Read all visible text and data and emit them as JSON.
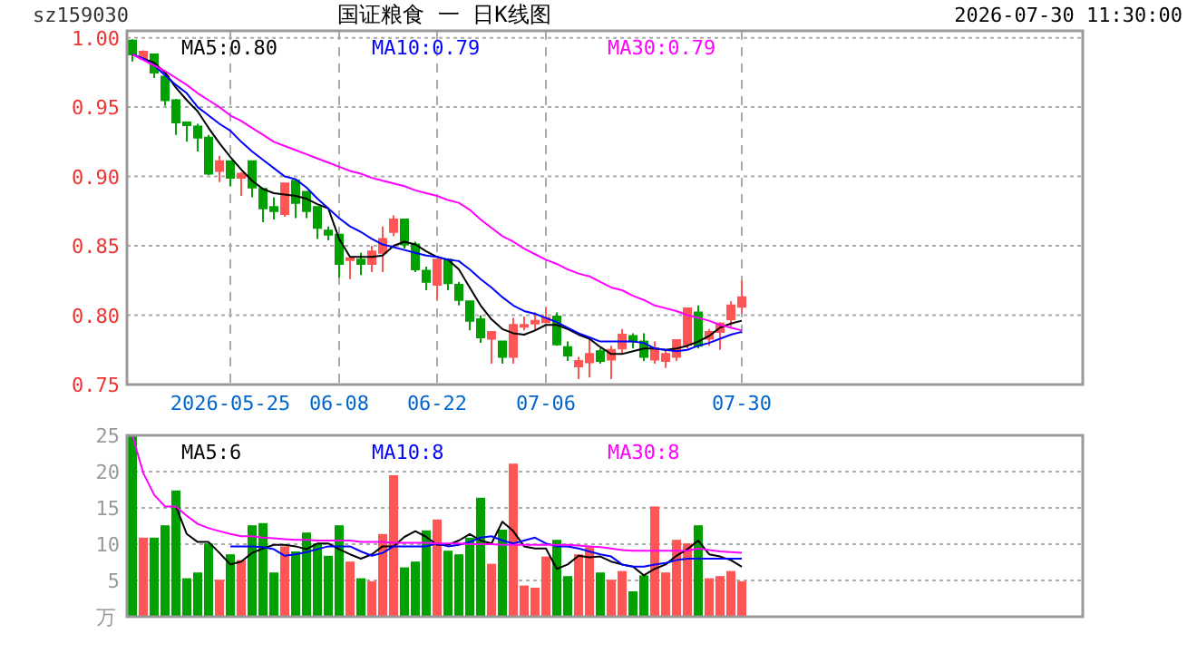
{
  "chart_data": [
    {
      "type": "candlestick",
      "title": "国证粮食 一 日K线图",
      "annotations": [
        "sz159030",
        "2026-07-30 11:30:00"
      ],
      "categories": [
        null,
        null,
        null,
        null,
        null,
        null,
        null,
        null,
        null,
        "2026-05-25",
        null,
        null,
        null,
        null,
        null,
        null,
        null,
        null,
        null,
        "06-08",
        null,
        null,
        null,
        null,
        null,
        null,
        null,
        null,
        "06-22",
        null,
        null,
        null,
        null,
        null,
        null,
        null,
        null,
        null,
        "07-06",
        null,
        null,
        null,
        null,
        null,
        null,
        null,
        null,
        null,
        null,
        null,
        null,
        null,
        null,
        null,
        null,
        null,
        "07-30"
      ],
      "ohlc": [
        [
          0.998,
          0.999,
          0.983,
          0.988
        ],
        [
          0.985,
          0.991,
          0.984,
          0.99
        ],
        [
          0.988,
          0.988,
          0.971,
          0.975
        ],
        [
          0.972,
          0.973,
          0.951,
          0.955
        ],
        [
          0.955,
          0.956,
          0.93,
          0.939
        ],
        [
          0.939,
          0.939,
          0.925,
          0.937
        ],
        [
          0.936,
          0.938,
          0.918,
          0.928
        ],
        [
          0.928,
          0.93,
          0.901,
          0.902
        ],
        [
          0.904,
          0.915,
          0.896,
          0.911
        ],
        [
          0.911,
          0.911,
          0.893,
          0.899
        ],
        [
          0.899,
          0.903,
          0.886,
          0.902
        ],
        [
          0.911,
          0.911,
          0.885,
          0.892
        ],
        [
          0.891,
          0.891,
          0.867,
          0.877
        ],
        [
          0.878,
          0.885,
          0.869,
          0.875
        ],
        [
          0.873,
          0.895,
          0.871,
          0.895
        ],
        [
          0.897,
          0.898,
          0.87,
          0.881
        ],
        [
          0.889,
          0.889,
          0.87,
          0.875
        ],
        [
          0.878,
          0.878,
          0.855,
          0.863
        ],
        [
          0.861,
          0.864,
          0.854,
          0.858
        ],
        [
          0.858,
          0.858,
          0.827,
          0.837
        ],
        [
          0.84,
          0.841,
          0.826,
          0.841
        ],
        [
          0.84,
          0.845,
          0.829,
          0.837
        ],
        [
          0.837,
          0.85,
          0.831,
          0.846
        ],
        [
          0.845,
          0.864,
          0.831,
          0.855
        ],
        [
          0.86,
          0.872,
          0.857,
          0.869
        ],
        [
          0.869,
          0.869,
          0.848,
          0.851
        ],
        [
          0.851,
          0.853,
          0.831,
          0.833
        ],
        [
          0.832,
          0.835,
          0.818,
          0.824
        ],
        [
          0.822,
          0.84,
          0.811,
          0.84
        ],
        [
          0.84,
          0.841,
          0.818,
          0.823
        ],
        [
          0.822,
          0.824,
          0.807,
          0.811
        ],
        [
          0.81,
          0.81,
          0.789,
          0.796
        ],
        [
          0.797,
          0.8,
          0.78,
          0.784
        ],
        [
          0.783,
          0.788,
          0.765,
          0.788
        ],
        [
          0.781,
          0.781,
          0.765,
          0.77
        ],
        [
          0.77,
          0.798,
          0.765,
          0.793
        ],
        [
          0.792,
          0.799,
          0.789,
          0.793
        ],
        [
          0.794,
          0.802,
          0.789,
          0.796
        ],
        [
          0.795,
          0.806,
          0.794,
          0.798
        ],
        [
          0.799,
          0.802,
          0.778,
          0.779
        ],
        [
          0.777,
          0.781,
          0.767,
          0.771
        ],
        [
          0.763,
          0.77,
          0.754,
          0.767
        ],
        [
          0.766,
          0.783,
          0.755,
          0.772
        ],
        [
          0.774,
          0.776,
          0.765,
          0.767
        ],
        [
          0.768,
          0.778,
          0.754,
          0.775
        ],
        [
          0.776,
          0.79,
          0.772,
          0.786
        ],
        [
          0.785,
          0.787,
          0.776,
          0.781
        ],
        [
          0.781,
          0.787,
          0.767,
          0.77
        ],
        [
          0.768,
          0.781,
          0.765,
          0.776
        ],
        [
          0.767,
          0.775,
          0.762,
          0.772
        ],
        [
          0.77,
          0.782,
          0.767,
          0.782
        ],
        [
          0.779,
          0.805,
          0.776,
          0.805
        ],
        [
          0.802,
          0.807,
          0.776,
          0.778
        ],
        [
          0.783,
          0.79,
          0.778,
          0.788
        ],
        [
          0.788,
          0.795,
          0.775,
          0.794
        ],
        [
          0.797,
          0.81,
          0.792,
          0.807
        ],
        [
          0.806,
          0.825,
          0.801,
          0.813
        ]
      ],
      "colors": [
        "#00a000",
        "#ff5555",
        "#00a000",
        "#00a000",
        "#00a000",
        "#00a000",
        "#00a000",
        "#00a000",
        "#ff5555",
        "#00a000",
        "#ff5555",
        "#00a000",
        "#00a000",
        "#00a000",
        "#ff5555",
        "#00a000",
        "#00a000",
        "#00a000",
        "#00a000",
        "#00a000",
        "#ff5555",
        "#00a000",
        "#ff5555",
        "#ff5555",
        "#ff5555",
        "#00a000",
        "#00a000",
        "#00a000",
        "#ff5555",
        "#00a000",
        "#00a000",
        "#00a000",
        "#00a000",
        "#ff5555",
        "#00a000",
        "#ff5555",
        "#ff5555",
        "#ff5555",
        "#ff5555",
        "#00a000",
        "#00a000",
        "#ff5555",
        "#ff5555",
        "#00a000",
        "#ff5555",
        "#ff5555",
        "#00a000",
        "#00a000",
        "#ff5555",
        "#ff5555",
        "#ff5555",
        "#ff5555",
        "#00a000",
        "#ff5555",
        "#ff5555",
        "#ff5555",
        "#ff5555"
      ],
      "ylim": [
        0.75,
        1.005
      ],
      "yticks": [
        0.75,
        {
          "value": 0.8,
          "label": "0.80"
        },
        0.85,
        {
          "value": 0.9,
          "label": "0.90"
        },
        0.95,
        {
          "value": 1.0,
          "label": "1.00"
        }
      ],
      "grid": true,
      "legend": "top",
      "series": [
        {
          "name": "MA5:0.80",
          "type": "line",
          "color": "#000000",
          "values": [
            0.988,
            0.985,
            0.982,
            0.975,
            0.964,
            0.955,
            0.947,
            0.935,
            0.924,
            0.914,
            0.905,
            0.897,
            0.891,
            0.888,
            0.887,
            0.886,
            0.884,
            0.88,
            0.877,
            0.855,
            0.842,
            0.842,
            0.842,
            0.843,
            0.85,
            0.853,
            0.851,
            0.846,
            0.842,
            0.84,
            0.833,
            0.82,
            0.807,
            0.797,
            0.79,
            0.787,
            0.786,
            0.789,
            0.793,
            0.793,
            0.79,
            0.786,
            0.783,
            0.777,
            0.772,
            0.772,
            0.774,
            0.776,
            0.776,
            0.775,
            0.776,
            0.778,
            0.781,
            0.785,
            0.791,
            0.794,
            0.796
          ]
        },
        {
          "name": "MA10:0.79",
          "type": "line",
          "color": "#0000ff",
          "values": [
            0.988,
            0.985,
            0.98,
            0.973,
            0.966,
            0.96,
            0.95,
            0.944,
            0.938,
            0.933,
            0.925,
            0.918,
            0.912,
            0.906,
            0.9,
            0.898,
            0.892,
            0.884,
            0.877,
            0.87,
            0.864,
            0.86,
            0.855,
            0.851,
            0.849,
            0.847,
            0.845,
            0.843,
            0.842,
            0.84,
            0.839,
            0.833,
            0.826,
            0.82,
            0.813,
            0.807,
            0.803,
            0.801,
            0.798,
            0.795,
            0.791,
            0.787,
            0.784,
            0.781,
            0.781,
            0.781,
            0.781,
            0.78,
            0.776,
            0.775,
            0.774,
            0.775,
            0.778,
            0.78,
            0.783,
            0.786,
            0.788
          ]
        },
        {
          "name": "MA30:0.79",
          "type": "line",
          "color": "#ff00ff",
          "values": [
            0.988,
            0.984,
            0.98,
            0.976,
            0.971,
            0.966,
            0.96,
            0.955,
            0.95,
            0.944,
            0.94,
            0.935,
            0.93,
            0.925,
            0.922,
            0.919,
            0.916,
            0.913,
            0.91,
            0.907,
            0.904,
            0.902,
            0.899,
            0.897,
            0.895,
            0.893,
            0.89,
            0.888,
            0.886,
            0.883,
            0.881,
            0.876,
            0.869,
            0.863,
            0.857,
            0.853,
            0.848,
            0.844,
            0.84,
            0.837,
            0.833,
            0.83,
            0.828,
            0.824,
            0.82,
            0.818,
            0.814,
            0.811,
            0.807,
            0.805,
            0.803,
            0.8,
            0.798,
            0.796,
            0.793,
            0.791,
            0.789
          ]
        }
      ]
    },
    {
      "type": "bar",
      "ylabel": "万",
      "tick_labels": "y",
      "categories": [
        null,
        null,
        null,
        null,
        null,
        null,
        null,
        null,
        null,
        null,
        null,
        null,
        null,
        null,
        null,
        null,
        null,
        null,
        null,
        null,
        null,
        null,
        null,
        null,
        null,
        null,
        null,
        null,
        null,
        null,
        null,
        null,
        null,
        null,
        null,
        null,
        null,
        null,
        null,
        null,
        null,
        null,
        null,
        null,
        null,
        null,
        null,
        null,
        null,
        null,
        null,
        null,
        null,
        null,
        null,
        null,
        null
      ],
      "ylim": [
        0,
        25
      ],
      "yticks": [
        5,
        10,
        15,
        20,
        25
      ],
      "grid": true,
      "legend": "top",
      "series": [
        {
          "type": "bar",
          "values": [
            25,
            10.9,
            10.9,
            12.6,
            17.4,
            5.3,
            6.1,
            10.1,
            5.1,
            8.6,
            7.8,
            12.6,
            12.9,
            6.1,
            9.7,
            9.0,
            11.6,
            10.1,
            8.4,
            12.6,
            7.6,
            5.3,
            4.9,
            11.4,
            19.5,
            6.8,
            7.6,
            11.9,
            13.4,
            9.1,
            8.6,
            10.9,
            16.4,
            7.3,
            12.0,
            21.1,
            4.3,
            4.0,
            8.3,
            10.6,
            5.6,
            8.6,
            9.6,
            6.1,
            5.1,
            6.3,
            3.5,
            5.7,
            15.2,
            6.1,
            10.6,
            10.1,
            12.6,
            5.3,
            5.6,
            6.3,
            4.9
          ],
          "colors": [
            "#00a000",
            "#ff5555",
            "#00a000",
            "#00a000",
            "#00a000",
            "#00a000",
            "#00a000",
            "#00a000",
            "#ff5555",
            "#00a000",
            "#ff5555",
            "#00a000",
            "#00a000",
            "#00a000",
            "#ff5555",
            "#00a000",
            "#00a000",
            "#00a000",
            "#00a000",
            "#00a000",
            "#ff5555",
            "#00a000",
            "#ff5555",
            "#ff5555",
            "#ff5555",
            "#00a000",
            "#00a000",
            "#00a000",
            "#ff5555",
            "#00a000",
            "#00a000",
            "#00a000",
            "#00a000",
            "#ff5555",
            "#00a000",
            "#ff5555",
            "#ff5555",
            "#ff5555",
            "#ff5555",
            "#00a000",
            "#00a000",
            "#ff5555",
            "#ff5555",
            "#00a000",
            "#ff5555",
            "#ff5555",
            "#00a000",
            "#00a000",
            "#ff5555",
            "#ff5555",
            "#ff5555",
            "#ff5555",
            "#00a000",
            "#ff5555",
            "#ff5555",
            "#ff5555",
            "#ff5555"
          ]
        },
        {
          "name": "MA5:6",
          "type": "line",
          "color": "#000000",
          "values": [
            null,
            null,
            null,
            null,
            15.2,
            11.4,
            10.3,
            10.3,
            8.8,
            7.2,
            7.6,
            8.8,
            9.4,
            9.9,
            9.9,
            9.7,
            9.3,
            10.1,
            10.1,
            9.3,
            8.6,
            8.0,
            8.6,
            9.7,
            9.7,
            11.0,
            11.8,
            11.0,
            9.9,
            9.9,
            10.5,
            11.4,
            10.5,
            10.1,
            13.1,
            11.8,
            9.7,
            9.4,
            9.4,
            6.6,
            7.2,
            8.4,
            8.2,
            8.3,
            7.6,
            7.2,
            6.9,
            5.7,
            6.6,
            7.2,
            8.4,
            9.3,
            10.5,
            8.6,
            8.3,
            7.8,
            6.9
          ]
        },
        {
          "name": "MA10:8",
          "type": "line",
          "color": "#0000ff",
          "values": [
            null,
            null,
            null,
            null,
            null,
            null,
            null,
            null,
            null,
            9.7,
            9.7,
            9.7,
            9.6,
            9.3,
            8.4,
            8.6,
            8.9,
            9.3,
            9.7,
            9.7,
            9.7,
            9.0,
            8.4,
            8.8,
            9.7,
            9.7,
            9.7,
            9.7,
            10.1,
            9.7,
            9.9,
            10.3,
            10.9,
            11.1,
            10.5,
            10.1,
            10.5,
            10.9,
            10.1,
            9.7,
            9.7,
            9.4,
            9.0,
            8.6,
            8.3,
            7.2,
            6.9,
            6.9,
            7.2,
            7.4,
            7.8,
            8.0,
            8.0,
            8.0,
            8.0,
            8.0,
            8.0
          ]
        },
        {
          "name": "MA30:8",
          "type": "line",
          "color": "#ff00ff",
          "values": [
            25,
            19.8,
            16.8,
            15.2,
            15.2,
            13.9,
            12.8,
            12.2,
            11.8,
            11.4,
            11.1,
            11.1,
            10.9,
            10.8,
            10.7,
            10.6,
            10.6,
            10.5,
            10.5,
            10.5,
            10.5,
            10.3,
            10.3,
            10.3,
            10.2,
            10.2,
            10.2,
            10.2,
            10.1,
            10.1,
            10.1,
            10.0,
            10.0,
            10.0,
            9.9,
            9.9,
            9.9,
            9.9,
            9.9,
            9.9,
            9.9,
            9.8,
            9.7,
            9.6,
            9.4,
            9.2,
            9.1,
            9.1,
            9.1,
            9.1,
            9.1,
            9.1,
            9.4,
            9.2,
            9.0,
            8.9,
            8.8
          ]
        }
      ]
    }
  ]
}
